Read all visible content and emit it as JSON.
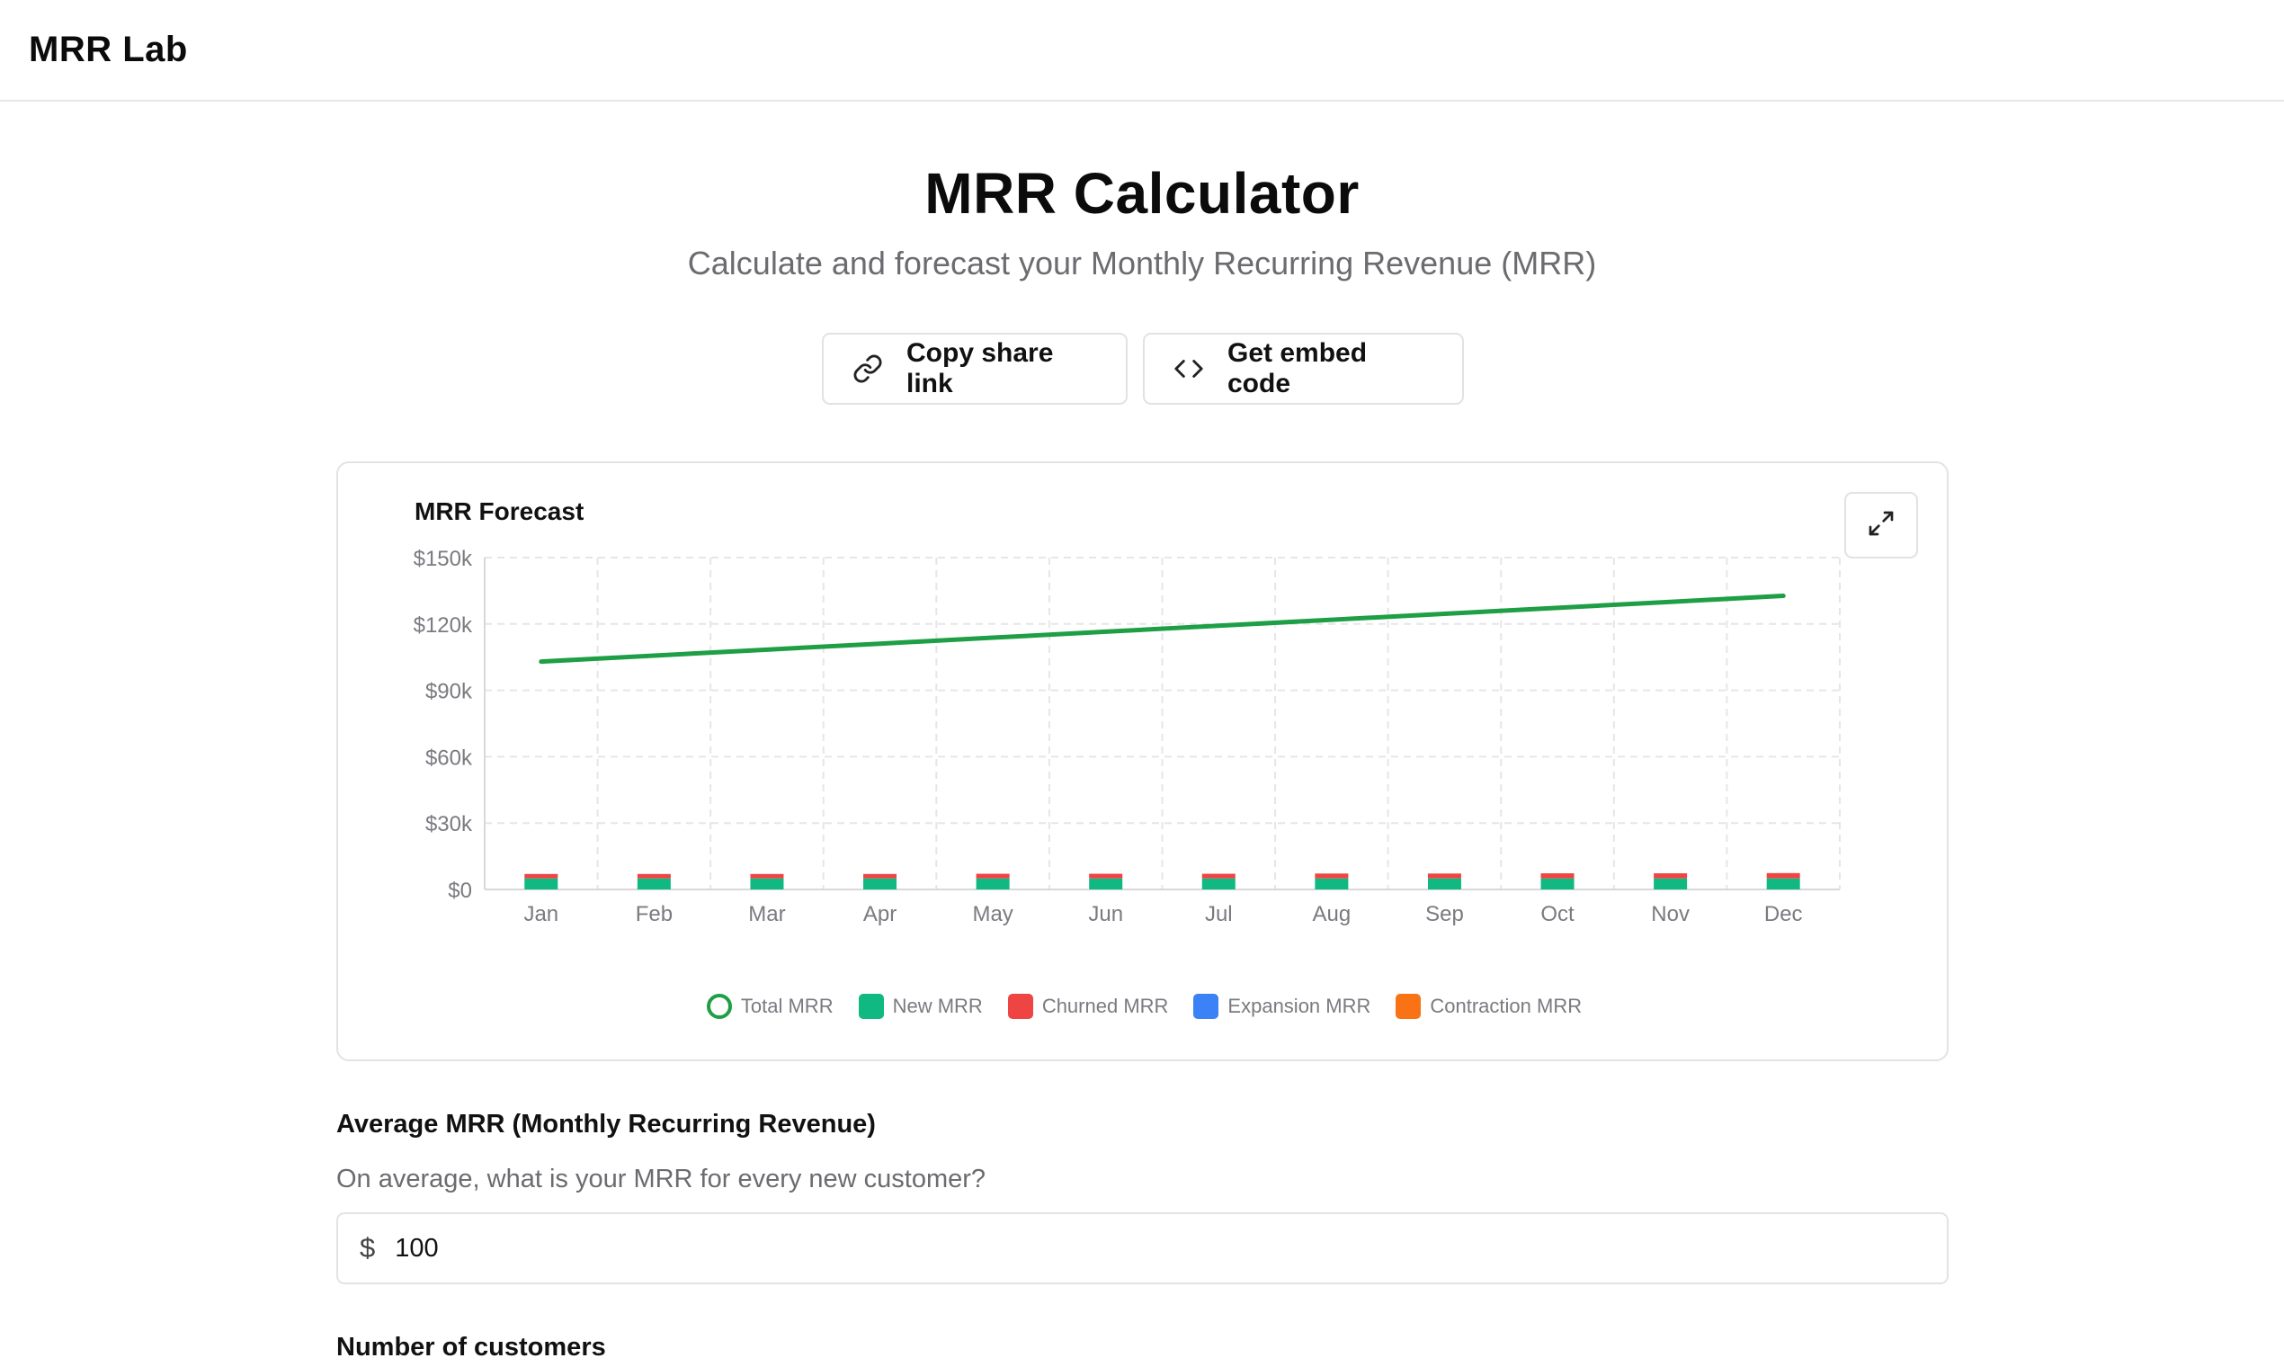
{
  "app": {
    "brand": "MRR Lab"
  },
  "header": {
    "title": "MRR Calculator",
    "subtitle": "Calculate and forecast your Monthly Recurring Revenue (MRR)"
  },
  "actions": {
    "copy_label": "Copy share link",
    "copy_icon": "link-icon",
    "embed_label": "Get embed code",
    "embed_icon": "code-icon"
  },
  "chart_card": {
    "expand_icon": "expand-icon"
  },
  "chart_data": {
    "type": "bar",
    "title": "MRR Forecast",
    "categories": [
      "Jan",
      "Feb",
      "Mar",
      "Apr",
      "May",
      "Jun",
      "Jul",
      "Aug",
      "Sep",
      "Oct",
      "Nov",
      "Dec"
    ],
    "y_ticks": [
      "$0",
      "$30k",
      "$60k",
      "$90k",
      "$120k",
      "$150k"
    ],
    "ylim": [
      0,
      150000
    ],
    "grid": true,
    "legend_position": "bottom",
    "series": [
      {
        "name": "Total MRR",
        "type": "line",
        "color": "#1e9e45",
        "values": [
          103000,
          105700,
          108400,
          111100,
          113800,
          116500,
          119200,
          121900,
          124600,
          127300,
          130000,
          132700
        ]
      },
      {
        "name": "New MRR",
        "type": "bar",
        "color": "#10b981",
        "values": [
          5000,
          5000,
          5000,
          5000,
          5000,
          5000,
          5000,
          5000,
          5000,
          5000,
          5000,
          5000
        ]
      },
      {
        "name": "Churned MRR",
        "type": "bar",
        "color": "#ef4444",
        "values": [
          2000,
          2000,
          2000,
          2000,
          2100,
          2100,
          2100,
          2200,
          2200,
          2300,
          2300,
          2400
        ]
      },
      {
        "name": "Expansion MRR",
        "type": "bar",
        "color": "#3b82f6",
        "values": [
          0,
          0,
          0,
          0,
          0,
          0,
          0,
          0,
          0,
          0,
          0,
          0
        ]
      },
      {
        "name": "Contraction MRR",
        "type": "bar",
        "color": "#f97316",
        "values": [
          0,
          0,
          0,
          0,
          0,
          0,
          0,
          0,
          0,
          0,
          0,
          0
        ]
      }
    ]
  },
  "form": {
    "avg_mrr": {
      "label": "Average MRR (Monthly Recurring Revenue)",
      "help": "On average, what is your MRR for every new customer?",
      "prefix": "$",
      "value": "100"
    },
    "customers": {
      "label": "Number of customers"
    }
  }
}
